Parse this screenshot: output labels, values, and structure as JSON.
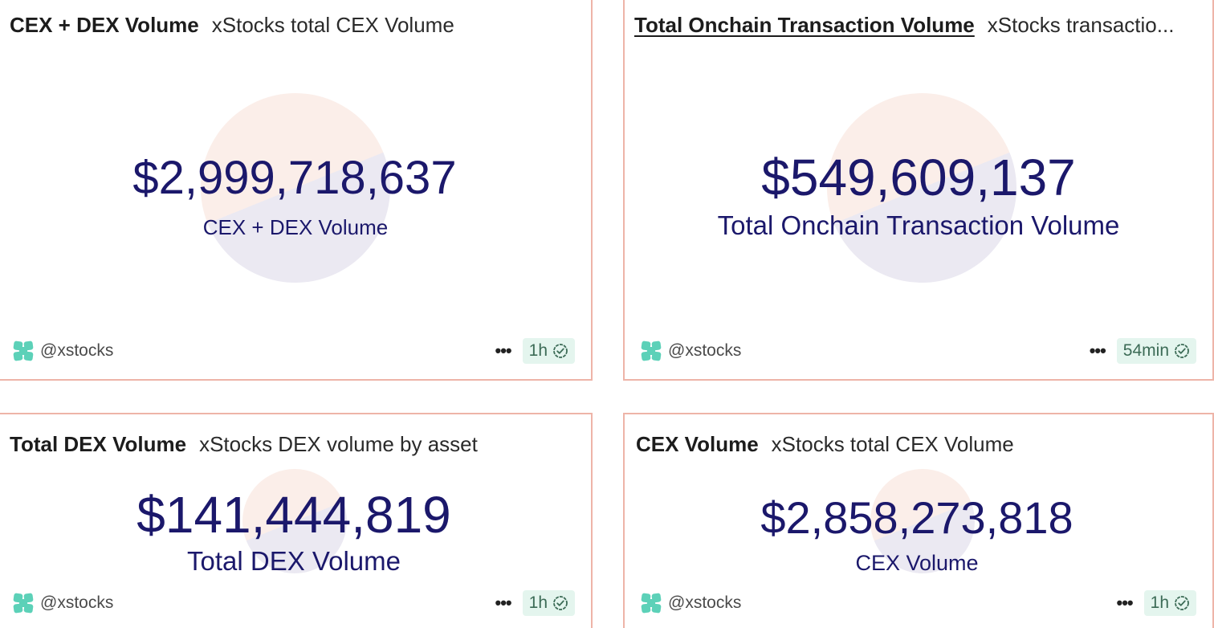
{
  "cards": [
    {
      "title": "CEX + DEX Volume",
      "subtitle": "xStocks total CEX Volume",
      "value": "$2,999,718,637",
      "label": "CEX + DEX Volume",
      "author": "@xstocks",
      "freshness": "1h"
    },
    {
      "title": "Total Onchain Transaction Volume",
      "subtitle": "xStocks transactio...",
      "value": "$549,609,137",
      "label": "Total Onchain Transaction Volume",
      "author": "@xstocks",
      "freshness": "54min"
    },
    {
      "title": "Total DEX Volume",
      "subtitle": "xStocks DEX volume by asset",
      "value": "$141,444,819",
      "label": "Total DEX Volume",
      "author": "@xstocks",
      "freshness": "1h"
    },
    {
      "title": "CEX Volume",
      "subtitle": "xStocks total CEX Volume",
      "value": "$2,858,273,818",
      "label": "CEX Volume",
      "author": "@xstocks",
      "freshness": "1h"
    }
  ],
  "colors": {
    "border": "#eeb4a8",
    "value_text": "#1b186b",
    "badge_bg": "#e4f5ee",
    "badge_text": "#3c6b56",
    "logo": "#5cd1b8"
  },
  "icons": {
    "author_logo": "xstocks-logo-icon",
    "more": "more-options-icon",
    "verified": "check-circle-icon"
  }
}
